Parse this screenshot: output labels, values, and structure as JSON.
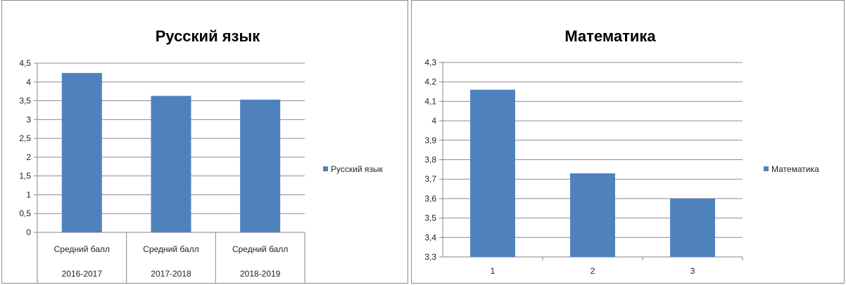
{
  "chart_data": [
    {
      "type": "bar",
      "title": "Русский язык",
      "categories": [
        {
          "line1": "Средний балл",
          "line2": "2016-2017"
        },
        {
          "line1": "Средний балл",
          "line2": "2017-2018"
        },
        {
          "line1": "Средний балл",
          "line2": "2018-2019"
        }
      ],
      "series": [
        {
          "name": "Русский язык",
          "values": [
            4.24,
            3.63,
            3.53
          ]
        }
      ],
      "ylim": [
        0,
        4.5
      ],
      "yticks": [
        "0",
        "0,5",
        "1",
        "1,5",
        "2",
        "2,5",
        "3",
        "3,5",
        "4",
        "4,5"
      ],
      "grid": true,
      "legend": "right",
      "color": "#4f81bd"
    },
    {
      "type": "bar",
      "title": "Математика",
      "categories": [
        "1",
        "2",
        "3"
      ],
      "series": [
        {
          "name": "Математика",
          "values": [
            4.16,
            3.73,
            3.6
          ]
        }
      ],
      "ylim": [
        3.3,
        4.3
      ],
      "yticks": [
        "3,3",
        "3,4",
        "3,5",
        "3,6",
        "3,7",
        "3,8",
        "3,9",
        "4",
        "4,1",
        "4,2",
        "4,3"
      ],
      "grid": true,
      "legend": "right",
      "color": "#4f81bd"
    }
  ]
}
